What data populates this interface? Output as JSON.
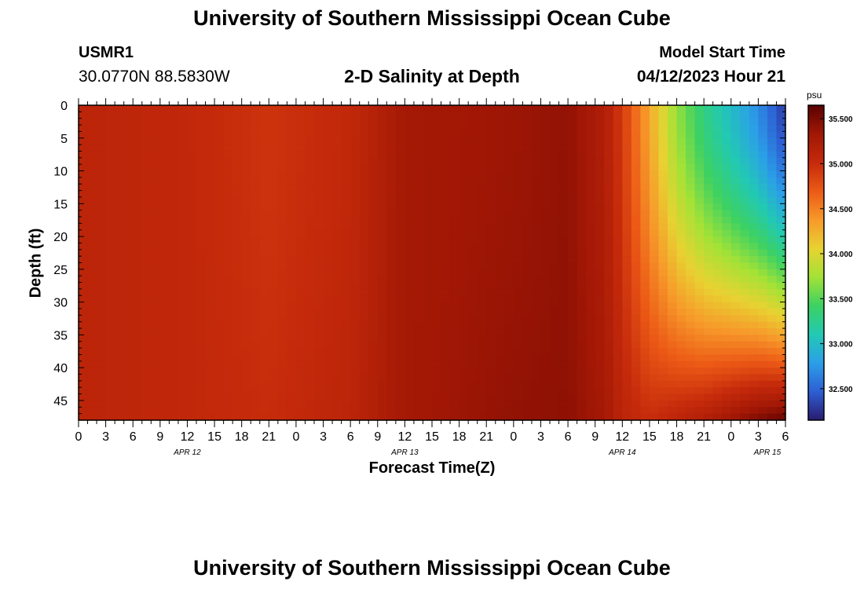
{
  "page": {
    "title_top": "University of Southern Mississippi Ocean Cube",
    "title_bottom": "University of Southern Mississippi Ocean Cube",
    "station_id": "USMR1",
    "station_coords": "30.0770N  88.5830W",
    "plot_title": "2-D Salinity at Depth",
    "model_start_label": "Model Start Time",
    "model_start_time": "04/12/2023 Hour 21"
  },
  "chart_data": {
    "type": "heatmap",
    "title": "2-D Salinity at Depth",
    "xlabel": "Forecast Time(Z)",
    "ylabel": "Depth (ft)",
    "ylim": [
      0,
      48
    ],
    "y_inverted": true,
    "yticks": [
      0,
      5,
      10,
      15,
      20,
      25,
      30,
      35,
      40,
      45
    ],
    "xticks": [
      {
        "label": "0",
        "hour": 0
      },
      {
        "label": "3",
        "hour": 3
      },
      {
        "label": "6",
        "hour": 6
      },
      {
        "label": "9",
        "hour": 9
      },
      {
        "label": "12",
        "hour": 12
      },
      {
        "label": "15",
        "hour": 15
      },
      {
        "label": "18",
        "hour": 18
      },
      {
        "label": "21",
        "hour": 21
      },
      {
        "label": "0",
        "hour": 24
      },
      {
        "label": "3",
        "hour": 27
      },
      {
        "label": "6",
        "hour": 30
      },
      {
        "label": "9",
        "hour": 33
      },
      {
        "label": "12",
        "hour": 36
      },
      {
        "label": "15",
        "hour": 39
      },
      {
        "label": "18",
        "hour": 42
      },
      {
        "label": "21",
        "hour": 45
      },
      {
        "label": "0",
        "hour": 48
      },
      {
        "label": "3",
        "hour": 51
      },
      {
        "label": "6",
        "hour": 54
      },
      {
        "label": "9",
        "hour": 57
      },
      {
        "label": "12",
        "hour": 60
      },
      {
        "label": "15",
        "hour": 63
      },
      {
        "label": "18",
        "hour": 66
      },
      {
        "label": "21",
        "hour": 69
      },
      {
        "label": "0",
        "hour": 72
      },
      {
        "label": "3",
        "hour": 75
      },
      {
        "label": "6",
        "hour": 78
      }
    ],
    "date_labels": [
      {
        "label": "APR 12",
        "hour": 12
      },
      {
        "label": "APR 13",
        "hour": 36
      },
      {
        "label": "APR 14",
        "hour": 60
      },
      {
        "label": "APR 15",
        "hour": 76
      }
    ],
    "time_range_hours": [
      0,
      78
    ],
    "colorbar": {
      "unit": "psu",
      "range": [
        32.15,
        35.65
      ],
      "ticks": [
        "32.500",
        "33.000",
        "33.500",
        "34.000",
        "34.500",
        "35.000",
        "35.500"
      ],
      "colors": [
        "#2a1b6e",
        "#2d5fd4",
        "#2b9fe8",
        "#22c9b3",
        "#3dd162",
        "#a4e236",
        "#e8d232",
        "#f7992a",
        "#ec5a16",
        "#c52a0b",
        "#a11705",
        "#5a0202"
      ]
    },
    "salinity_profiles": [
      {
        "hour": 0,
        "surface": 35.1,
        "bottom": 35.1
      },
      {
        "hour": 12,
        "surface": 35.05,
        "bottom": 35.05
      },
      {
        "hour": 21,
        "surface": 34.95,
        "bottom": 35.0
      },
      {
        "hour": 30,
        "surface": 35.05,
        "bottom": 35.1
      },
      {
        "hour": 36,
        "surface": 35.3,
        "bottom": 35.3
      },
      {
        "hour": 48,
        "surface": 35.35,
        "bottom": 35.4
      },
      {
        "hour": 54,
        "surface": 35.4,
        "bottom": 35.42
      },
      {
        "hour": 58,
        "surface": 35.2,
        "bottom": 35.3
      },
      {
        "hour": 60,
        "surface": 34.9,
        "bottom": 35.1
      },
      {
        "hour": 63,
        "surface": 34.3,
        "bottom": 35.0
      },
      {
        "hour": 66,
        "surface": 33.7,
        "bottom": 35.1
      },
      {
        "hour": 69,
        "surface": 33.3,
        "bottom": 35.2
      },
      {
        "hour": 72,
        "surface": 33.0,
        "bottom": 35.35
      },
      {
        "hour": 75,
        "surface": 32.7,
        "bottom": 35.5
      },
      {
        "hour": 78,
        "surface": 32.3,
        "bottom": 35.6
      }
    ]
  }
}
